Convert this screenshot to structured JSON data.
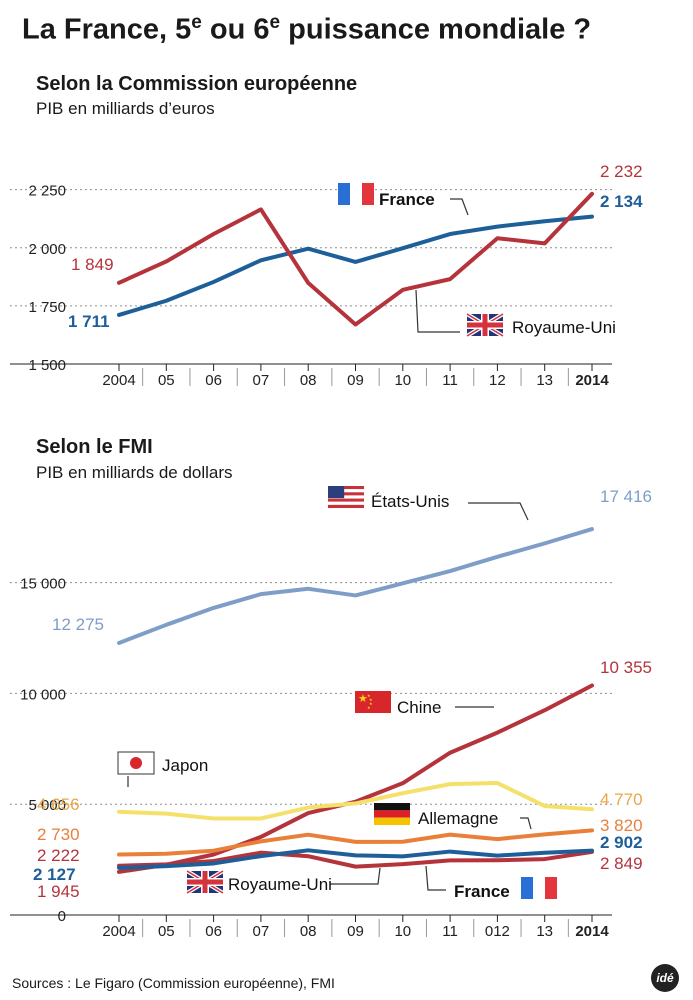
{
  "header": {
    "title_main": "La France, 5",
    "title_sup1": "e",
    "title_mid": " ou 6",
    "title_sup2": "e",
    "title_end": " puissance mondiale ?"
  },
  "footer": {
    "source": "Sources : Le Figaro (Commission européenne), FMI",
    "logo": "idé"
  },
  "chart_data": [
    {
      "type": "line",
      "title": "Selon la Commission européenne",
      "subtitle": "PIB en milliards d’euros",
      "categories": [
        "2004",
        "05",
        "06",
        "07",
        "08",
        "09",
        "10",
        "11",
        "12",
        "13",
        "2014"
      ],
      "yticks": [
        "1 500",
        "1 750",
        "2 000",
        "2 250"
      ],
      "ylim": [
        1500,
        2300
      ],
      "grid": true,
      "series": [
        {
          "name": "France",
          "color": "#1f5f99",
          "values": [
            1711,
            1772,
            1853,
            1946,
            1996,
            1939,
            1998,
            2059,
            2091,
            2114,
            2134
          ],
          "start_label": "1 711",
          "end_label": "2 134",
          "flag": "fr"
        },
        {
          "name": "Royaume-Uni",
          "color": "#b5333b",
          "values": [
            1849,
            1941,
            2059,
            2165,
            1849,
            1670,
            1819,
            1865,
            2041,
            2019,
            2232
          ],
          "start_label": "1 849",
          "end_label": "2 232",
          "flag": "uk"
        }
      ]
    },
    {
      "type": "line",
      "title": "Selon le FMI",
      "subtitle": "PIB en milliards de dollars",
      "categories": [
        "2004",
        "05",
        "06",
        "07",
        "08",
        "09",
        "10",
        "11",
        "012",
        "13",
        "2014"
      ],
      "yticks": [
        "0",
        "5 000",
        "10 000",
        "15 000"
      ],
      "ylim": [
        0,
        18500
      ],
      "grid": true,
      "series": [
        {
          "name": "États-Unis",
          "color": "#7e9ec8",
          "values": [
            12275,
            13094,
            13856,
            14478,
            14719,
            14419,
            14964,
            15518,
            16163,
            16768,
            17416
          ],
          "start_label": "12 275",
          "end_label": "17 416",
          "flag": "us"
        },
        {
          "name": "Chine",
          "color": "#b5333b",
          "values": [
            1945,
            2268,
            2730,
            3523,
            4598,
            5110,
            5950,
            7322,
            8230,
            9240,
            10355
          ],
          "start_label": "1 945",
          "end_label": "10 355",
          "flag": "cn"
        },
        {
          "name": "Japon",
          "color": "#f4e06a",
          "values": [
            4656,
            4572,
            4357,
            4356,
            4849,
            5035,
            5495,
            5906,
            5954,
            4920,
            4770
          ],
          "start_label": "4 656",
          "end_label": "4 770",
          "flag": "jp"
        },
        {
          "name": "Allemagne",
          "color": "#e8803a",
          "values": [
            2730,
            2766,
            2902,
            3323,
            3623,
            3298,
            3304,
            3628,
            3426,
            3636,
            3820
          ],
          "start_label": "2 730",
          "end_label": "3 820",
          "flag": "de"
        },
        {
          "name": "Royaume-Uni",
          "color": "#b5333b",
          "values": [
            2222,
            2287,
            2437,
            2813,
            2653,
            2183,
            2296,
            2465,
            2471,
            2523,
            2849
          ],
          "start_label": "2 222",
          "end_label": "2 849",
          "flag": "uk"
        },
        {
          "name": "France",
          "color": "#1f5f99",
          "values": [
            2127,
            2206,
            2326,
            2657,
            2919,
            2690,
            2647,
            2862,
            2681,
            2808,
            2902
          ],
          "start_label": "2 127",
          "end_label": "2 902",
          "flag": "fr"
        }
      ]
    }
  ]
}
